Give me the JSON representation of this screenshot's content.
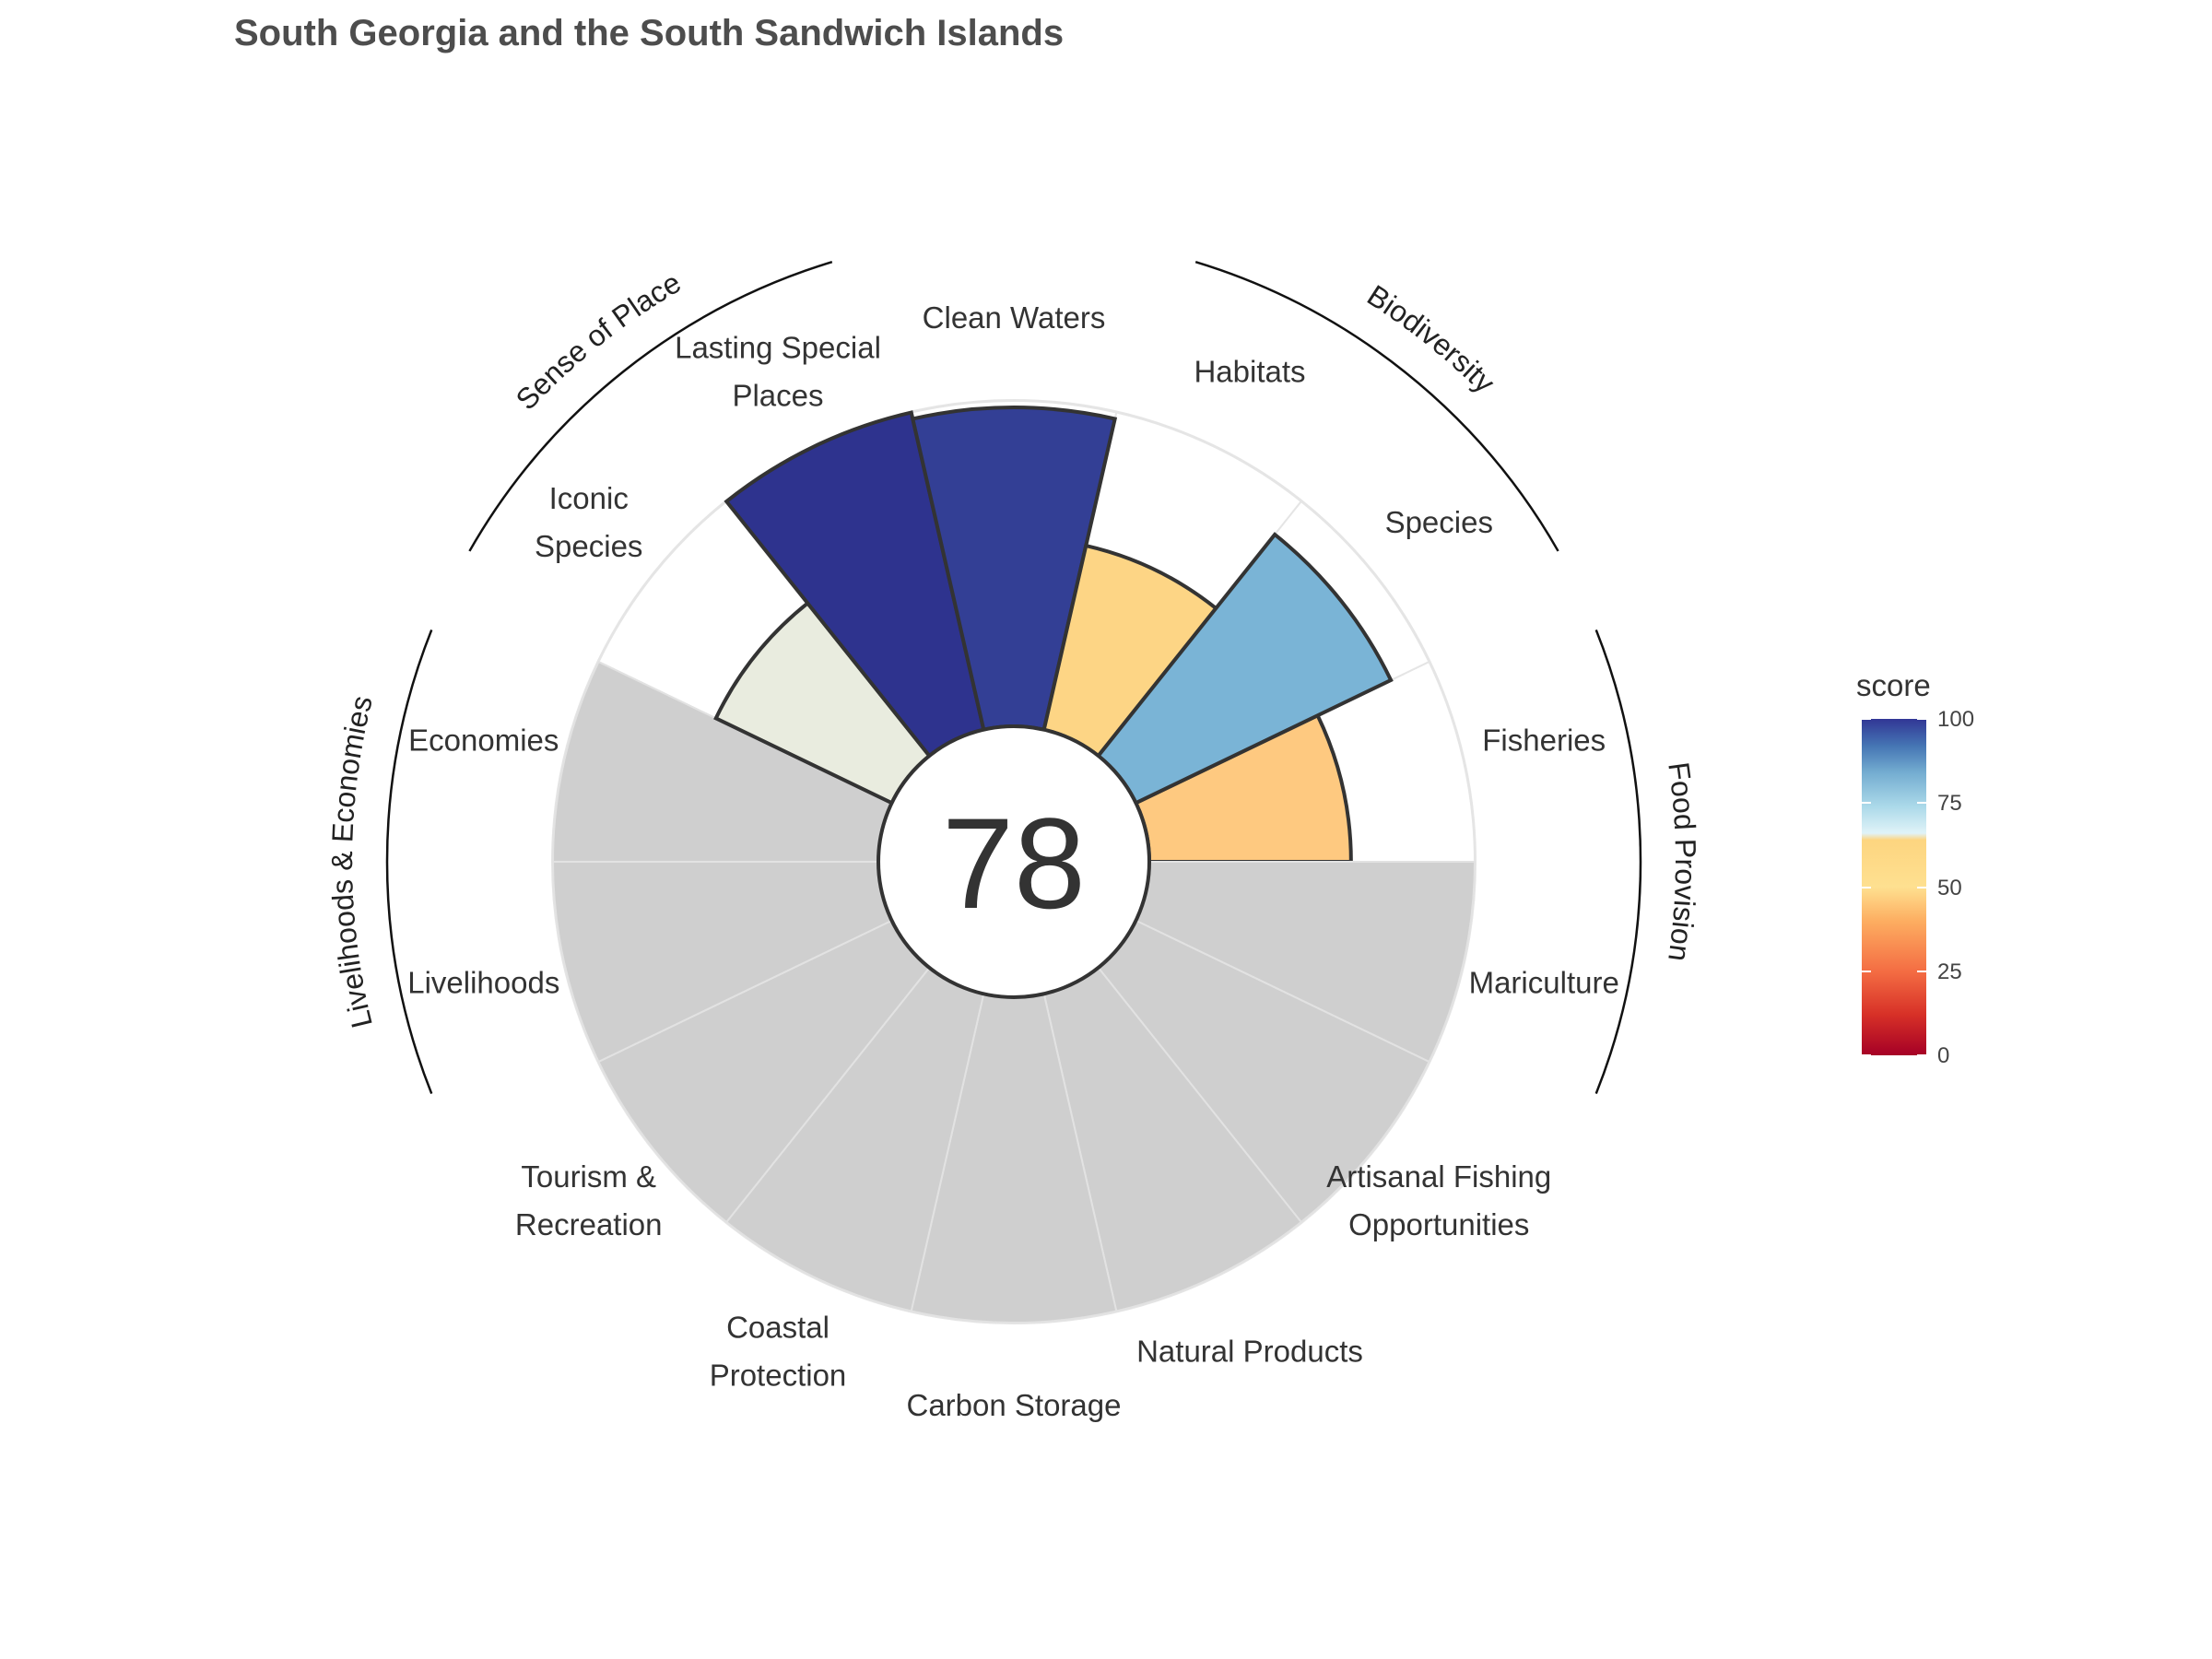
{
  "title": "South Georgia and the South Sandwich Islands",
  "center_score": "78",
  "legend": {
    "title": "score",
    "ticks": [
      "0",
      "25",
      "50",
      "75",
      "100"
    ]
  },
  "colors": {
    "not_scored": "#cfcfcf",
    "outline": "#333333",
    "background_ring": "#e5e5e5"
  },
  "chart_data": {
    "type": "rose",
    "title": "South Georgia and the South Sandwich Islands",
    "score_range": [
      0,
      100
    ],
    "petals": [
      {
        "name": "Fisheries",
        "lines": [
          "Fisheries"
        ],
        "score": 62,
        "color": "#fec980",
        "group": "Food Provision"
      },
      {
        "name": "Mariculture",
        "lines": [
          "Mariculture"
        ],
        "score": null,
        "group": "Food Provision"
      },
      {
        "name": "Artisanal Fishing Opportunities",
        "lines": [
          "Artisanal Fishing",
          "Opportunities"
        ],
        "score": null,
        "group": ""
      },
      {
        "name": "Natural Products",
        "lines": [
          "Natural Products"
        ],
        "score": null,
        "group": ""
      },
      {
        "name": "Carbon Storage",
        "lines": [
          "Carbon Storage"
        ],
        "score": null,
        "group": ""
      },
      {
        "name": "Coastal Protection",
        "lines": [
          "Coastal",
          "Protection"
        ],
        "score": null,
        "group": ""
      },
      {
        "name": "Tourism & Recreation",
        "lines": [
          "Tourism &",
          "Recreation"
        ],
        "score": null,
        "group": ""
      },
      {
        "name": "Livelihoods",
        "lines": [
          "Livelihoods"
        ],
        "score": null,
        "group": "Livelihoods & Economies"
      },
      {
        "name": "Economies",
        "lines": [
          "Economies"
        ],
        "score": null,
        "group": "Livelihoods & Economies"
      },
      {
        "name": "Iconic Species",
        "lines": [
          "Iconic",
          "Species"
        ],
        "score": 60,
        "color": "#e9ecdf",
        "group": "Sense of Place"
      },
      {
        "name": "Lasting Special Places",
        "lines": [
          "Lasting Special",
          "Places"
        ],
        "score": 100,
        "color": "#2e338e",
        "group": "Sense of Place"
      },
      {
        "name": "Clean Waters",
        "lines": [
          "Clean Waters"
        ],
        "score": 98,
        "color": "#333f95",
        "group": ""
      },
      {
        "name": "Habitats",
        "lines": [
          "Habitats"
        ],
        "score": 58,
        "color": "#fdd585",
        "group": "Biodiversity"
      },
      {
        "name": "Species",
        "lines": [
          "Species"
        ],
        "score": 87,
        "color": "#7ab4d6",
        "group": "Biodiversity"
      }
    ],
    "groups": [
      "Food Provision",
      "Biodiversity",
      "Sense of Place",
      "Livelihoods & Economies"
    ]
  }
}
